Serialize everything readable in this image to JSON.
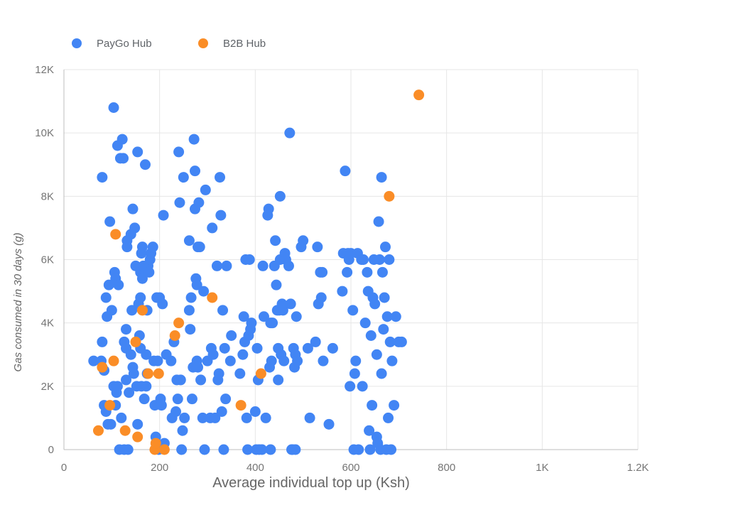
{
  "chart_data": {
    "type": "scatter",
    "title": "",
    "xlabel": "Average individual top up (Ksh)",
    "ylabel": "Gas consumed in 30 days (g)",
    "xlim": [
      0,
      1200
    ],
    "ylim": [
      0,
      12000
    ],
    "x_ticks": [
      {
        "value": 0,
        "label": "0"
      },
      {
        "value": 200,
        "label": "200"
      },
      {
        "value": 400,
        "label": "400"
      },
      {
        "value": 600,
        "label": "600"
      },
      {
        "value": 800,
        "label": "800"
      },
      {
        "value": 1000,
        "label": "1K"
      },
      {
        "value": 1200,
        "label": "1.2K"
      }
    ],
    "y_ticks": [
      {
        "value": 0,
        "label": "0"
      },
      {
        "value": 2000,
        "label": "2K"
      },
      {
        "value": 4000,
        "label": "4K"
      },
      {
        "value": 6000,
        "label": "6K"
      },
      {
        "value": 8000,
        "label": "8K"
      },
      {
        "value": 10000,
        "label": "10K"
      },
      {
        "value": 12000,
        "label": "12K"
      }
    ],
    "grid": true,
    "legend_position": "top-left",
    "series": [
      {
        "name": "PayGo Hub",
        "color": "#4285f4",
        "points": [
          [
            62,
            2800
          ],
          [
            78,
            2800
          ],
          [
            80,
            3400
          ],
          [
            80,
            8600
          ],
          [
            84,
            2500
          ],
          [
            84,
            1400
          ],
          [
            88,
            4800
          ],
          [
            88,
            1200
          ],
          [
            90,
            4200
          ],
          [
            92,
            800
          ],
          [
            94,
            5200
          ],
          [
            96,
            7200
          ],
          [
            98,
            800
          ],
          [
            100,
            4400
          ],
          [
            104,
            10800
          ],
          [
            104,
            2000
          ],
          [
            106,
            5600
          ],
          [
            108,
            5400
          ],
          [
            108,
            1400
          ],
          [
            110,
            1800
          ],
          [
            112,
            9600
          ],
          [
            112,
            2000
          ],
          [
            114,
            5200
          ],
          [
            116,
            0
          ],
          [
            118,
            9200
          ],
          [
            120,
            1000
          ],
          [
            122,
            9800
          ],
          [
            124,
            9200
          ],
          [
            126,
            3400
          ],
          [
            126,
            0
          ],
          [
            130,
            3800
          ],
          [
            130,
            3200
          ],
          [
            130,
            2200
          ],
          [
            132,
            6600
          ],
          [
            132,
            6400
          ],
          [
            134,
            0
          ],
          [
            136,
            1800
          ],
          [
            140,
            3000
          ],
          [
            140,
            6800
          ],
          [
            142,
            4400
          ],
          [
            144,
            7600
          ],
          [
            144,
            2600
          ],
          [
            146,
            2400
          ],
          [
            148,
            7000
          ],
          [
            150,
            5800
          ],
          [
            152,
            2000
          ],
          [
            154,
            9400
          ],
          [
            154,
            800
          ],
          [
            156,
            4600
          ],
          [
            158,
            3600
          ],
          [
            160,
            5600
          ],
          [
            160,
            4800
          ],
          [
            160,
            3200
          ],
          [
            162,
            6200
          ],
          [
            162,
            2000
          ],
          [
            164,
            6400
          ],
          [
            164,
            5400
          ],
          [
            166,
            5800
          ],
          [
            168,
            1600
          ],
          [
            170,
            9000
          ],
          [
            172,
            3000
          ],
          [
            172,
            2000
          ],
          [
            174,
            4400
          ],
          [
            174,
            2400
          ],
          [
            176,
            5800
          ],
          [
            178,
            5600
          ],
          [
            180,
            6000
          ],
          [
            182,
            6200
          ],
          [
            186,
            6400
          ],
          [
            188,
            2800
          ],
          [
            190,
            1400
          ],
          [
            192,
            400
          ],
          [
            194,
            4800
          ],
          [
            196,
            2800
          ],
          [
            198,
            0
          ],
          [
            200,
            4800
          ],
          [
            202,
            1600
          ],
          [
            204,
            1400
          ],
          [
            206,
            4600
          ],
          [
            208,
            7400
          ],
          [
            210,
            200
          ],
          [
            214,
            3000
          ],
          [
            224,
            2800
          ],
          [
            226,
            1000
          ],
          [
            230,
            3400
          ],
          [
            234,
            1200
          ],
          [
            236,
            2200
          ],
          [
            238,
            1600
          ],
          [
            240,
            9400
          ],
          [
            242,
            7800
          ],
          [
            244,
            2200
          ],
          [
            246,
            0
          ],
          [
            248,
            600
          ],
          [
            250,
            8600
          ],
          [
            252,
            1000
          ],
          [
            262,
            6600
          ],
          [
            262,
            4400
          ],
          [
            264,
            3800
          ],
          [
            266,
            4800
          ],
          [
            268,
            1600
          ],
          [
            270,
            2600
          ],
          [
            272,
            9800
          ],
          [
            274,
            8800
          ],
          [
            274,
            7600
          ],
          [
            276,
            5400
          ],
          [
            278,
            5200
          ],
          [
            278,
            2800
          ],
          [
            280,
            6400
          ],
          [
            280,
            2600
          ],
          [
            282,
            7800
          ],
          [
            284,
            6400
          ],
          [
            286,
            2200
          ],
          [
            290,
            1000
          ],
          [
            292,
            5000
          ],
          [
            294,
            0
          ],
          [
            296,
            8200
          ],
          [
            300,
            2800
          ],
          [
            306,
            1000
          ],
          [
            308,
            3200
          ],
          [
            310,
            7000
          ],
          [
            312,
            3000
          ],
          [
            316,
            1000
          ],
          [
            320,
            5800
          ],
          [
            322,
            2200
          ],
          [
            324,
            2400
          ],
          [
            326,
            8600
          ],
          [
            328,
            7400
          ],
          [
            330,
            1200
          ],
          [
            332,
            4400
          ],
          [
            334,
            0
          ],
          [
            336,
            3200
          ],
          [
            338,
            1600
          ],
          [
            340,
            5800
          ],
          [
            348,
            2800
          ],
          [
            350,
            3600
          ],
          [
            368,
            2400
          ],
          [
            374,
            3000
          ],
          [
            376,
            4200
          ],
          [
            378,
            3400
          ],
          [
            380,
            6000
          ],
          [
            382,
            1000
          ],
          [
            384,
            0
          ],
          [
            386,
            3600
          ],
          [
            388,
            6000
          ],
          [
            390,
            3800
          ],
          [
            392,
            4000
          ],
          [
            400,
            1200
          ],
          [
            402,
            0
          ],
          [
            404,
            3200
          ],
          [
            406,
            2200
          ],
          [
            408,
            0
          ],
          [
            414,
            0
          ],
          [
            416,
            5800
          ],
          [
            418,
            4200
          ],
          [
            422,
            1000
          ],
          [
            426,
            7400
          ],
          [
            428,
            7600
          ],
          [
            430,
            2600
          ],
          [
            432,
            4000
          ],
          [
            432,
            0
          ],
          [
            434,
            2800
          ],
          [
            436,
            4000
          ],
          [
            440,
            5800
          ],
          [
            442,
            6600
          ],
          [
            444,
            5200
          ],
          [
            446,
            4400
          ],
          [
            448,
            3200
          ],
          [
            448,
            2200
          ],
          [
            450,
            4400
          ],
          [
            452,
            8000
          ],
          [
            452,
            6000
          ],
          [
            454,
            3000
          ],
          [
            456,
            4600
          ],
          [
            458,
            4400
          ],
          [
            460,
            2800
          ],
          [
            462,
            6200
          ],
          [
            464,
            6000
          ],
          [
            470,
            5800
          ],
          [
            472,
            10000
          ],
          [
            474,
            4600
          ],
          [
            476,
            0
          ],
          [
            478,
            0
          ],
          [
            480,
            3200
          ],
          [
            482,
            2600
          ],
          [
            484,
            0
          ],
          [
            484,
            3000
          ],
          [
            486,
            4200
          ],
          [
            488,
            2800
          ],
          [
            496,
            6400
          ],
          [
            500,
            6600
          ],
          [
            510,
            3200
          ],
          [
            514,
            1000
          ],
          [
            526,
            3400
          ],
          [
            530,
            6400
          ],
          [
            532,
            4600
          ],
          [
            536,
            5600
          ],
          [
            538,
            4800
          ],
          [
            540,
            5600
          ],
          [
            542,
            2800
          ],
          [
            554,
            800
          ],
          [
            562,
            3200
          ],
          [
            582,
            5000
          ],
          [
            584,
            6200
          ],
          [
            588,
            8800
          ],
          [
            592,
            5600
          ],
          [
            594,
            6200
          ],
          [
            596,
            6000
          ],
          [
            598,
            2000
          ],
          [
            600,
            6200
          ],
          [
            604,
            4400
          ],
          [
            606,
            0
          ],
          [
            608,
            2400
          ],
          [
            610,
            2800
          ],
          [
            614,
            6200
          ],
          [
            616,
            0
          ],
          [
            622,
            6000
          ],
          [
            624,
            2000
          ],
          [
            626,
            6000
          ],
          [
            630,
            4000
          ],
          [
            634,
            5600
          ],
          [
            636,
            5000
          ],
          [
            638,
            600
          ],
          [
            640,
            0
          ],
          [
            642,
            3600
          ],
          [
            644,
            1400
          ],
          [
            646,
            4800
          ],
          [
            648,
            6000
          ],
          [
            650,
            4600
          ],
          [
            654,
            400
          ],
          [
            654,
            3000
          ],
          [
            656,
            200
          ],
          [
            658,
            7200
          ],
          [
            660,
            6000
          ],
          [
            662,
            0
          ],
          [
            664,
            2400
          ],
          [
            664,
            8600
          ],
          [
            666,
            5600
          ],
          [
            668,
            3800
          ],
          [
            670,
            4800
          ],
          [
            672,
            6400
          ],
          [
            674,
            0
          ],
          [
            676,
            4200
          ],
          [
            678,
            1000
          ],
          [
            680,
            6000
          ],
          [
            682,
            3400
          ],
          [
            684,
            0
          ],
          [
            686,
            2800
          ],
          [
            690,
            1400
          ],
          [
            694,
            4200
          ],
          [
            700,
            3400
          ],
          [
            706,
            3400
          ]
        ]
      },
      {
        "name": "B2B Hub",
        "color": "#fa8d27",
        "points": [
          [
            72,
            600
          ],
          [
            80,
            2600
          ],
          [
            96,
            1400
          ],
          [
            104,
            2800
          ],
          [
            108,
            6800
          ],
          [
            128,
            600
          ],
          [
            150,
            3400
          ],
          [
            154,
            400
          ],
          [
            164,
            4400
          ],
          [
            176,
            2400
          ],
          [
            190,
            0
          ],
          [
            192,
            200
          ],
          [
            198,
            2400
          ],
          [
            210,
            0
          ],
          [
            232,
            3600
          ],
          [
            240,
            4000
          ],
          [
            310,
            4800
          ],
          [
            370,
            1400
          ],
          [
            412,
            2400
          ],
          [
            680,
            8000
          ],
          [
            742,
            11200
          ]
        ]
      }
    ]
  }
}
